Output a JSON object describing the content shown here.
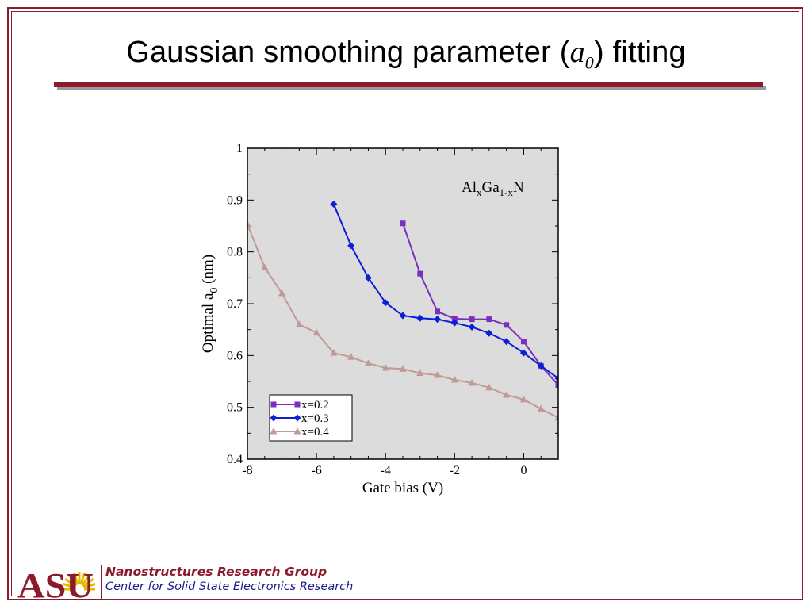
{
  "slide": {
    "title_pre": "Gaussian smoothing parameter (",
    "title_sym": "a",
    "title_sub": "0",
    "title_post": ") fitting"
  },
  "footer": {
    "logo_text": "ASU",
    "group": "Nanostructures Research Group",
    "center": "Center for Solid State Electronics Research"
  },
  "colors": {
    "frame": "#8b1a2b",
    "plot_bg": "#dcdcdc",
    "x02": "#7b2fbf",
    "x03": "#0a1fd6",
    "x04": "#c09a96",
    "footer_blue": "#1a1a8c",
    "logo": "#8b1a2b",
    "logo_sun": "#e6b800"
  },
  "chart_data": {
    "type": "line",
    "xlabel": "Gate bias (V)",
    "ylabel_pre": "Optimal a",
    "ylabel_sub": "0",
    "ylabel_post": " (nm)",
    "xlim": [
      -8,
      1
    ],
    "ylim": [
      0.4,
      1
    ],
    "xticks": [
      -8,
      -6,
      -4,
      -2,
      0
    ],
    "yticks": [
      0.4,
      0.5,
      0.6,
      0.7,
      0.8,
      0.9,
      1
    ],
    "yticklabels": [
      "0.4",
      "0.5",
      "0.6",
      "0.7",
      "0.8",
      "0.9",
      "1"
    ],
    "annotation": {
      "p1": "Al",
      "s1": "x",
      "p2": "Ga",
      "s2": "1-x",
      "p3": "N"
    },
    "legend_position": "bottom-left",
    "series": [
      {
        "name": "x=0.2",
        "marker": "square",
        "x": [
          -3.5,
          -3.0,
          -2.5,
          -2.0,
          -1.5,
          -1.0,
          -0.5,
          0.0,
          0.5,
          1.0
        ],
        "y": [
          0.855,
          0.758,
          0.685,
          0.671,
          0.67,
          0.67,
          0.659,
          0.627,
          0.58,
          0.543
        ]
      },
      {
        "name": "x=0.3",
        "marker": "diamond",
        "x": [
          -5.5,
          -5.0,
          -4.5,
          -4.0,
          -3.5,
          -3.0,
          -2.5,
          -2.0,
          -1.5,
          -1.0,
          -0.5,
          0.0,
          0.5,
          1.0
        ],
        "y": [
          0.892,
          0.812,
          0.75,
          0.702,
          0.677,
          0.672,
          0.67,
          0.663,
          0.655,
          0.643,
          0.627,
          0.605,
          0.58,
          0.556
        ]
      },
      {
        "name": "x=0.4",
        "marker": "triangle",
        "x": [
          -8.0,
          -7.5,
          -7.0,
          -6.5,
          -6.0,
          -5.5,
          -5.0,
          -4.5,
          -4.0,
          -3.5,
          -3.0,
          -2.5,
          -2.0,
          -1.5,
          -1.0,
          -0.5,
          0.0,
          0.5,
          1.0
        ],
        "y": [
          0.853,
          0.77,
          0.72,
          0.66,
          0.644,
          0.605,
          0.597,
          0.585,
          0.576,
          0.574,
          0.566,
          0.562,
          0.553,
          0.547,
          0.538,
          0.524,
          0.515,
          0.497,
          0.48
        ]
      }
    ]
  }
}
